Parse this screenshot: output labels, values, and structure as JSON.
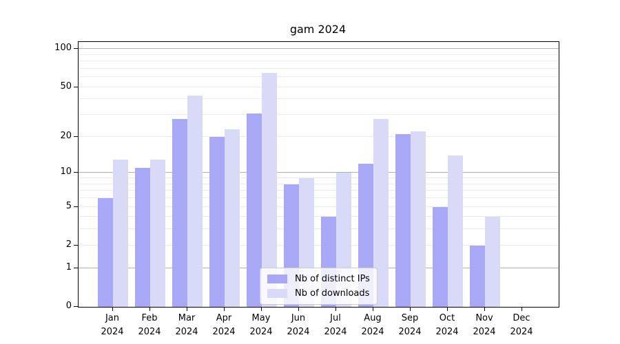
{
  "chart_data": {
    "type": "bar",
    "title": "gam 2024",
    "categories": [
      "Jan",
      "Feb",
      "Mar",
      "Apr",
      "May",
      "Jun",
      "Jul",
      "Aug",
      "Sep",
      "Oct",
      "Nov",
      "Dec"
    ],
    "xtick_year_line": "2024",
    "series": [
      {
        "name": "Nb of distinct IPs",
        "color": "#a8a8f6",
        "values": [
          6,
          11,
          28,
          20,
          31,
          8,
          4,
          12,
          21,
          5,
          2,
          0
        ]
      },
      {
        "name": "Nb of downloads",
        "color": "#d9d9f8",
        "values": [
          13,
          13,
          43,
          23,
          65,
          9,
          10,
          28,
          22,
          14,
          4,
          0
        ]
      }
    ],
    "yscale": "log1p",
    "ylim": [
      0,
      113.6
    ],
    "yticks": [
      0,
      1,
      2,
      5,
      10,
      20,
      50,
      100
    ],
    "ygrid_major": [
      1,
      10,
      100
    ],
    "ygrid_minor": [
      2,
      3,
      4,
      5,
      6,
      7,
      8,
      9,
      20,
      30,
      40,
      50,
      60,
      70,
      80,
      90
    ],
    "grid_on": true,
    "legend_position": "lower center inside",
    "colors": {
      "grid_major": "#b0b0b0",
      "grid_minor": "#ebebeb",
      "axis_text": "#000000",
      "spine": "#000000",
      "legend_border": "#cccccc"
    }
  }
}
